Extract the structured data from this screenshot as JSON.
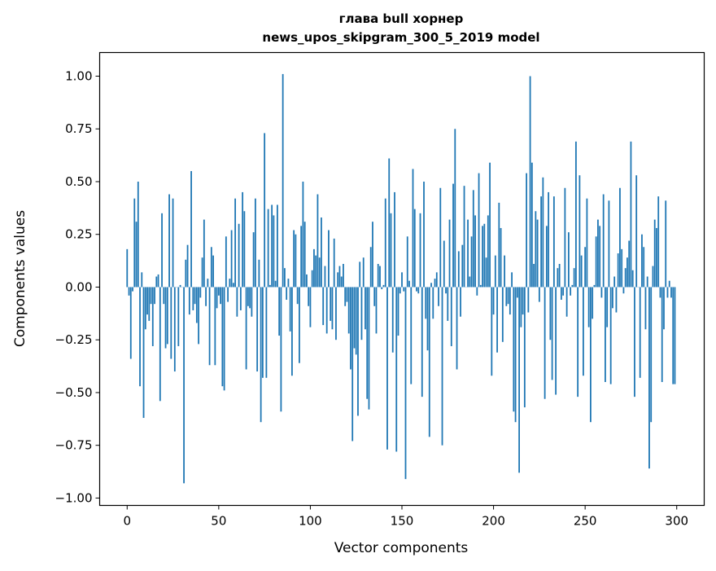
{
  "chart_data": {
    "type": "bar",
    "title_line1": "глава bull хорнер",
    "title_line2": "news_upos_skipgram_300_5_2019 model",
    "xlabel": "Vector components",
    "ylabel": "Components values",
    "xlim": [
      -15,
      315
    ],
    "ylim": [
      -1.035,
      1.112
    ],
    "xticks": [
      0,
      50,
      100,
      150,
      200,
      250,
      300
    ],
    "xtick_labels": [
      "0",
      "50",
      "100",
      "150",
      "200",
      "250",
      "300"
    ],
    "yticks": [
      -1,
      -0.75,
      -0.5,
      -0.25,
      0,
      0.25,
      0.5,
      0.75,
      1
    ],
    "ytick_labels": [
      "−1.00",
      "−0.75",
      "−0.50",
      "−0.25",
      "0.00",
      "0.25",
      "0.50",
      "0.75",
      "1.00"
    ],
    "color": "#1f77b4",
    "values": [
      0.18,
      -0.04,
      -0.34,
      -0.02,
      0.42,
      0.31,
      0.5,
      -0.47,
      0.07,
      -0.62,
      -0.2,
      -0.13,
      -0.16,
      -0.08,
      -0.28,
      -0.08,
      0.05,
      0.06,
      -0.54,
      0.35,
      -0.08,
      -0.29,
      -0.27,
      0.44,
      -0.34,
      0.42,
      -0.4,
      0.0,
      -0.28,
      0.01,
      0.0,
      -0.93,
      0.13,
      0.2,
      -0.13,
      0.55,
      -0.11,
      -0.08,
      -0.17,
      -0.27,
      -0.05,
      0.14,
      0.32,
      -0.09,
      0.04,
      -0.37,
      0.19,
      0.15,
      -0.37,
      -0.1,
      -0.04,
      -0.08,
      -0.47,
      -0.49,
      0.24,
      -0.07,
      0.04,
      0.27,
      0.02,
      0.42,
      -0.14,
      0.3,
      -0.11,
      0.45,
      0.36,
      -0.39,
      -0.09,
      -0.1,
      -0.14,
      0.26,
      0.42,
      -0.4,
      0.13,
      -0.64,
      -0.43,
      0.73,
      -0.43,
      0.37,
      0.01,
      0.39,
      0.34,
      0.03,
      0.39,
      -0.23,
      -0.59,
      1.01,
      0.09,
      -0.06,
      0.04,
      -0.21,
      -0.42,
      0.27,
      0.25,
      -0.08,
      -0.36,
      0.29,
      0.5,
      0.31,
      0.06,
      -0.09,
      -0.19,
      0.08,
      0.18,
      0.15,
      0.44,
      0.14,
      0.33,
      -0.18,
      0.1,
      -0.22,
      0.27,
      -0.16,
      -0.2,
      0.23,
      -0.25,
      0.07,
      0.1,
      0.05,
      0.11,
      -0.09,
      -0.07,
      -0.22,
      -0.39,
      -0.73,
      -0.29,
      -0.32,
      -0.61,
      0.12,
      -0.25,
      0.14,
      -0.2,
      -0.53,
      -0.58,
      0.19,
      0.31,
      -0.09,
      -0.22,
      0.11,
      0.1,
      -0.01,
      0.01,
      0.42,
      -0.77,
      0.61,
      0.35,
      -0.31,
      0.45,
      -0.78,
      -0.23,
      -0.03,
      0.07,
      -0.02,
      -0.91,
      0.24,
      0.03,
      -0.46,
      0.56,
      0.37,
      -0.02,
      -0.03,
      0.35,
      -0.52,
      0.5,
      -0.15,
      -0.3,
      -0.71,
      0.02,
      -0.15,
      0.04,
      0.07,
      -0.09,
      0.47,
      -0.75,
      0.22,
      -0.03,
      -0.16,
      0.32,
      -0.28,
      0.49,
      0.75,
      -0.39,
      0.17,
      -0.14,
      0.2,
      0.48,
      0.0,
      0.32,
      0.05,
      0.24,
      0.46,
      0.34,
      -0.04,
      0.54,
      0.01,
      0.29,
      0.3,
      0.14,
      0.34,
      0.59,
      -0.42,
      -0.13,
      0.15,
      -0.31,
      0.4,
      0.28,
      -0.26,
      0.15,
      -0.09,
      -0.08,
      -0.13,
      0.07,
      -0.59,
      -0.64,
      -0.05,
      -0.88,
      -0.19,
      -0.13,
      -0.57,
      0.54,
      -0.12,
      1.0,
      0.59,
      0.11,
      0.36,
      0.32,
      -0.07,
      0.43,
      0.52,
      -0.53,
      0.29,
      0.45,
      -0.25,
      -0.44,
      0.43,
      -0.51,
      0.09,
      0.11,
      -0.06,
      -0.04,
      0.47,
      -0.14,
      0.26,
      -0.04,
      0.01,
      0.09,
      0.69,
      -0.52,
      0.53,
      0.15,
      -0.42,
      0.19,
      0.42,
      -0.19,
      -0.64,
      -0.15,
      0.01,
      0.24,
      0.32,
      0.29,
      -0.05,
      0.44,
      -0.45,
      -0.19,
      0.41,
      -0.46,
      -0.1,
      0.05,
      -0.12,
      0.16,
      0.47,
      0.18,
      -0.03,
      0.09,
      0.14,
      0.22,
      0.69,
      0.08,
      -0.52,
      0.53,
      0.0,
      -0.43,
      0.25,
      0.19,
      -0.2,
      0.05,
      -0.86,
      -0.64,
      0.1,
      0.32,
      0.28,
      0.43,
      -0.05,
      -0.45,
      -0.2,
      0.41,
      -0.05,
      0.03,
      -0.05,
      -0.46,
      -0.46
    ]
  }
}
